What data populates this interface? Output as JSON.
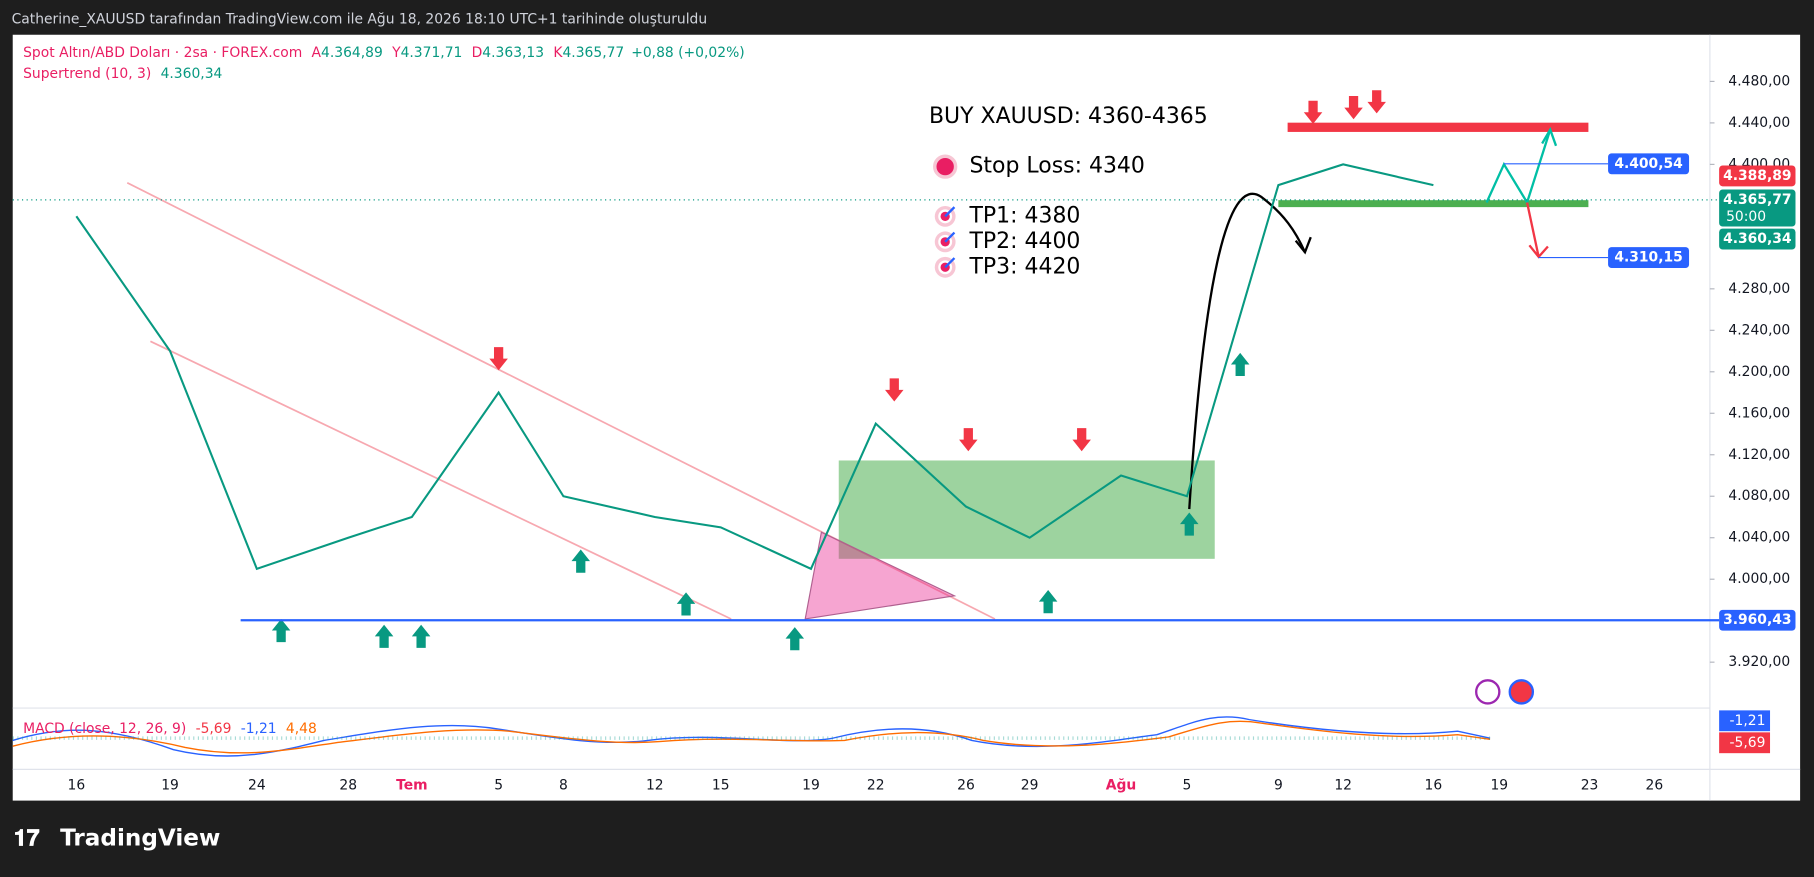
{
  "header": "Catherine_XAUUSD tarafından TradingView.com ile Ağu 18, 2026 18:10 UTC+1 tarihinde oluşturuldu",
  "footer": "TradingView",
  "chart_data": {
    "type": "line",
    "symbol": "Spot Altın/ABD Doları · 2sa · FOREX.com",
    "ohlc": [
      {
        "label": "A",
        "value": "4.364,89"
      },
      {
        "label": "Y",
        "value": "4.371,71"
      },
      {
        "label": "D",
        "value": "4.363,13"
      },
      {
        "label": "K",
        "value": "4.365,77"
      }
    ],
    "change": "+0,88 (+0,02%)",
    "indicator": {
      "name": "Supertrend (10, 3)",
      "value": "4.360,34"
    },
    "macd": {
      "name": "MACD (close, 12, 26, 9)",
      "values": [
        "-5,69",
        "-1,21",
        "4,48"
      ],
      "tags": [
        "-1,21",
        "-5,69"
      ]
    },
    "annotations": {
      "title": "BUY XAUUSD: 4360-4365",
      "stop_loss": "Stop Loss: 4340",
      "targets": [
        "TP1: 4380",
        "TP2: 4400",
        "TP3: 4420"
      ]
    },
    "categories": [
      "16",
      "19",
      "24",
      "28",
      "Tem",
      "5",
      "8",
      "12",
      "15",
      "19",
      "22",
      "26",
      "29",
      "Ağu",
      "5",
      "9",
      "12",
      "16",
      "19",
      "23",
      "26"
    ],
    "series": [
      {
        "name": "XAUUSD",
        "color": "#089981",
        "values": [
          4350,
          4220,
          4010,
          4040,
          4060,
          4180,
          4080,
          4060,
          4050,
          4010,
          4150,
          4070,
          4040,
          4100,
          4080,
          4380,
          4400,
          4380,
          null,
          null,
          null
        ]
      }
    ],
    "ylim": [
      3880,
      4525
    ],
    "yticks": [
      {
        "value": 4480,
        "label": "4.480,00"
      },
      {
        "value": 4440,
        "label": "4.440,00"
      },
      {
        "value": 4400,
        "label": "4.400,00"
      },
      {
        "value": 4280,
        "label": "4.280,00"
      },
      {
        "value": 4240,
        "label": "4.240,00"
      },
      {
        "value": 4200,
        "label": "4.200,00"
      },
      {
        "value": 4160,
        "label": "4.160,00"
      },
      {
        "value": 4120,
        "label": "4.120,00"
      },
      {
        "value": 4080,
        "label": "4.080,00"
      },
      {
        "value": 4040,
        "label": "4.040,00"
      },
      {
        "value": 4000,
        "label": "4.000,00"
      },
      {
        "value": 3920,
        "label": "3.920,00"
      }
    ],
    "price_tags": [
      {
        "value": 4400.54,
        "label": "4.400,54"
      },
      {
        "value": 4310.15,
        "label": "4.310,15"
      },
      {
        "value": 4388.89,
        "label": "4.388,89"
      },
      {
        "value": 4365.77,
        "label": "4.365,77"
      },
      {
        "value": 4360.34,
        "label": "4.360,34"
      },
      {
        "value": 3960.43,
        "label": "3.960,43"
      }
    ],
    "countdown": "50:00"
  }
}
